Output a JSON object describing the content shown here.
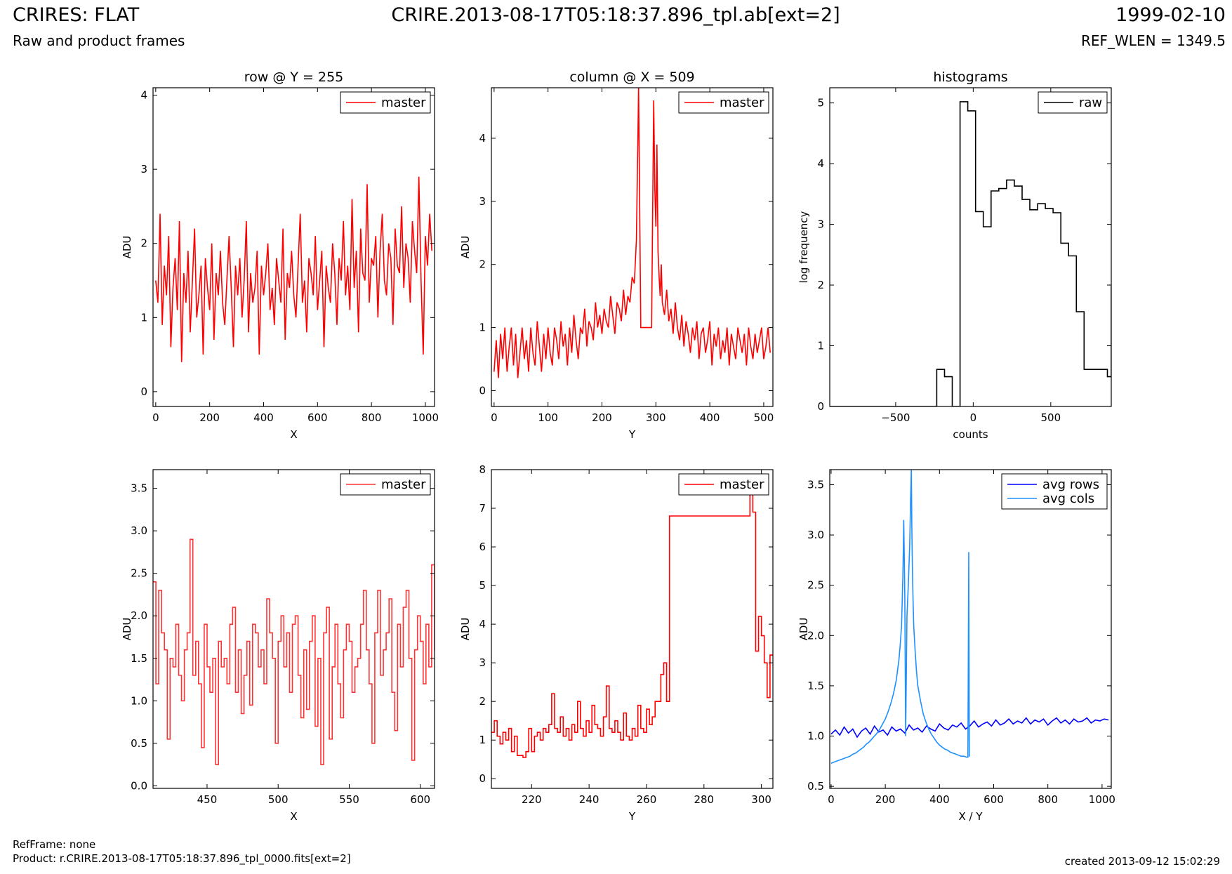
{
  "header": {
    "title": "CRIRES: FLAT",
    "subtitle": "Raw and product frames",
    "file": "CRIRE.2013-08-17T05:18:37.896_tpl.ab[ext=2]",
    "date": "1999-02-10",
    "ref_wlen": "REF_WLEN = 1349.5"
  },
  "footer": {
    "ref_frame": "RefFrame: none",
    "product": "Product: r.CRIRE.2013-08-17T05:18:37.896_tpl_0000.fits[ext=2]",
    "created": "created 2013-09-12 15:02:29"
  },
  "colors": {
    "master": "#ff0000",
    "master_zoom": "#ff3333",
    "raw": "#000000",
    "avg_rows": "#0000ff",
    "avg_cols": "#1e90ff"
  },
  "chart_data": [
    {
      "id": "row",
      "type": "line",
      "title": "row @ Y = 255",
      "xlabel": "X",
      "ylabel": "ADU",
      "xlim": [
        -10,
        1034
      ],
      "ylim": [
        -0.2,
        4.1
      ],
      "xticks": [
        0,
        200,
        400,
        600,
        800,
        1000
      ],
      "yticks": [
        0,
        1,
        2,
        3,
        4
      ],
      "legend": "top-right",
      "series": [
        {
          "name": "master",
          "color": "#ff0000",
          "step": false,
          "x_start": 0,
          "x_step": 8,
          "values": [
            1.5,
            1.2,
            2.4,
            0.9,
            1.7,
            1.3,
            2.1,
            0.6,
            1.4,
            1.8,
            1.1,
            2.3,
            0.4,
            1.6,
            1.2,
            1.9,
            0.8,
            1.5,
            2.2,
            1.0,
            1.3,
            1.7,
            0.5,
            1.8,
            1.4,
            1.1,
            2.0,
            0.7,
            1.6,
            1.3,
            1.9,
            1.2,
            0.9,
            1.5,
            2.1,
            1.4,
            0.6,
            1.7,
            1.3,
            1.8,
            1.0,
            1.5,
            2.3,
            0.8,
            1.6,
            1.2,
            1.4,
            1.9,
            0.5,
            1.7,
            1.3,
            1.6,
            2.0,
            1.1,
            1.4,
            0.9,
            1.8,
            1.5,
            1.2,
            2.2,
            0.7,
            1.6,
            1.4,
            1.9,
            1.3,
            1.0,
            1.7,
            2.4,
            1.2,
            1.5,
            0.8,
            1.8,
            1.6,
            1.3,
            2.1,
            1.1,
            1.5,
            1.9,
            0.6,
            1.7,
            1.4,
            1.2,
            2.0,
            1.6,
            0.9,
            1.8,
            1.5,
            2.3,
            1.3,
            1.7,
            1.1,
            2.6,
            1.4,
            1.9,
            0.8,
            2.2,
            1.6,
            1.5,
            2.8,
            1.2,
            1.8,
            1.7,
            2.1,
            1.0,
            1.9,
            2.4,
            1.5,
            1.3,
            2.0,
            1.8,
            0.9,
            2.2,
            1.7,
            1.6,
            2.5,
            1.4,
            2.0,
            1.8,
            1.2,
            2.3,
            1.9,
            1.6,
            2.9,
            1.5,
            0.5,
            2.1,
            1.7,
            2.4,
            1.9
          ]
        }
      ]
    },
    {
      "id": "col",
      "type": "line",
      "title": "column @ X = 509",
      "xlabel": "Y",
      "ylabel": "ADU",
      "xlim": [
        -5,
        517
      ],
      "ylim": [
        -0.25,
        4.8
      ],
      "xticks": [
        0,
        100,
        200,
        300,
        400,
        500
      ],
      "yticks": [
        0,
        1,
        2,
        3,
        4
      ],
      "legend": "top-right",
      "series": [
        {
          "name": "master",
          "color": "#ff0000",
          "x": [
            0,
            4,
            8,
            12,
            16,
            20,
            24,
            28,
            32,
            36,
            40,
            44,
            48,
            52,
            56,
            60,
            64,
            68,
            72,
            76,
            80,
            84,
            88,
            92,
            96,
            100,
            104,
            108,
            112,
            116,
            120,
            124,
            128,
            132,
            136,
            140,
            144,
            148,
            152,
            156,
            160,
            164,
            168,
            172,
            176,
            180,
            184,
            188,
            192,
            196,
            200,
            204,
            208,
            212,
            216,
            220,
            224,
            228,
            232,
            236,
            240,
            244,
            248,
            252,
            256,
            260,
            264,
            268,
            272,
            276,
            280,
            284,
            288,
            292,
            296,
            298,
            300,
            302,
            304,
            306,
            308,
            310,
            312,
            316,
            320,
            324,
            328,
            332,
            336,
            340,
            344,
            348,
            352,
            356,
            360,
            364,
            368,
            372,
            376,
            380,
            384,
            388,
            392,
            396,
            400,
            404,
            408,
            412,
            416,
            420,
            424,
            428,
            432,
            436,
            440,
            444,
            448,
            452,
            456,
            460,
            464,
            468,
            472,
            476,
            480,
            484,
            488,
            492,
            496,
            500,
            504,
            508,
            512
          ],
          "y": [
            0.3,
            0.8,
            0.2,
            0.9,
            0.5,
            1.0,
            0.3,
            0.7,
            1.0,
            0.4,
            0.9,
            0.2,
            0.6,
            1.0,
            0.5,
            0.8,
            0.3,
            1.0,
            0.6,
            0.4,
            1.1,
            0.7,
            0.3,
            0.9,
            0.5,
            1.0,
            0.6,
            0.4,
            1.0,
            0.8,
            0.5,
            1.1,
            0.7,
            0.9,
            0.4,
            1.0,
            0.6,
            1.2,
            0.8,
            0.5,
            1.0,
            0.9,
            1.3,
            0.7,
            1.1,
            1.0,
            0.8,
            1.4,
            1.0,
            1.2,
            0.9,
            1.3,
            1.1,
            1.0,
            1.5,
            1.2,
            0.9,
            1.4,
            1.3,
            1.1,
            1.6,
            1.2,
            1.5,
            1.4,
            1.8,
            1.7,
            2.4,
            4.8,
            1.0,
            1.0,
            1.0,
            1.0,
            1.0,
            1.0,
            4.6,
            3.2,
            2.6,
            3.9,
            2.2,
            1.8,
            1.5,
            2.0,
            1.4,
            1.2,
            1.6,
            1.1,
            1.3,
            0.9,
            1.4,
            1.0,
            0.8,
            1.2,
            0.7,
            1.1,
            0.9,
            0.6,
            1.0,
            0.8,
            1.1,
            0.5,
            0.9,
            1.0,
            0.6,
            0.8,
            1.1,
            0.4,
            0.9,
            0.7,
            1.0,
            0.5,
            0.8,
            0.6,
            1.0,
            0.4,
            0.9,
            0.7,
            0.5,
            1.0,
            0.8,
            0.6,
            0.9,
            0.4,
            1.0,
            0.7,
            0.5,
            0.9,
            0.6,
            0.8,
            1.0,
            0.5,
            0.7,
            1.0,
            0.6
          ]
        }
      ]
    },
    {
      "id": "hist",
      "type": "line",
      "title": "histograms",
      "xlabel": "counts",
      "ylabel": "log frequency",
      "xlim": [
        -925,
        890
      ],
      "ylim": [
        0,
        5.25
      ],
      "xticks": [
        -500,
        0,
        500
      ],
      "yticks": [
        0,
        1,
        2,
        3,
        4,
        5
      ],
      "legend": "top-right",
      "series": [
        {
          "name": "raw",
          "color": "#000000",
          "step": true,
          "x": [
            -925,
            -235,
            -185,
            -135,
            -85,
            -35,
            15,
            65,
            115,
            165,
            215,
            265,
            315,
            365,
            415,
            465,
            515,
            565,
            615,
            665,
            715,
            765,
            815,
            865,
            890
          ],
          "y": [
            0,
            0.61,
            0.49,
            0,
            5.02,
            4.87,
            3.21,
            2.96,
            3.55,
            3.59,
            3.73,
            3.63,
            3.41,
            3.24,
            3.34,
            3.26,
            3.19,
            2.69,
            2.48,
            1.56,
            0.61,
            0.61,
            0.61,
            0.49,
            1.97
          ]
        }
      ]
    },
    {
      "id": "row_zoom",
      "type": "line",
      "title": "",
      "xlabel": "X",
      "ylabel": "ADU",
      "xlim": [
        412,
        610
      ],
      "ylim": [
        -0.03,
        3.72
      ],
      "xticks": [
        450,
        500,
        550,
        600
      ],
      "yticks": [
        0.0,
        0.5,
        1.0,
        1.5,
        2.0,
        2.5,
        3.0,
        3.5
      ],
      "legend": "top-right",
      "series": [
        {
          "name": "master",
          "color": "#ff3333",
          "step": true,
          "x_start": 412,
          "x_step": 2,
          "values": [
            2.4,
            1.2,
            2.3,
            1.8,
            1.6,
            0.55,
            1.5,
            1.4,
            1.9,
            1.3,
            1.0,
            1.6,
            1.8,
            2.9,
            1.3,
            1.7,
            1.2,
            0.45,
            1.9,
            1.4,
            1.1,
            1.5,
            0.25,
            1.7,
            1.4,
            1.5,
            1.2,
            1.9,
            2.1,
            1.1,
            1.6,
            0.85,
            1.3,
            1.7,
            0.95,
            1.9,
            1.8,
            1.4,
            1.6,
            1.2,
            2.2,
            1.8,
            1.5,
            0.5,
            1.7,
            2.0,
            1.4,
            1.8,
            1.1,
            1.9,
            2.0,
            1.3,
            0.8,
            1.6,
            0.9,
            1.7,
            2.0,
            0.7,
            1.5,
            0.25,
            1.8,
            2.1,
            0.55,
            1.4,
            1.9,
            1.2,
            0.8,
            1.6,
            1.9,
            1.7,
            1.1,
            1.4,
            1.5,
            1.9,
            2.3,
            1.6,
            1.2,
            0.5,
            1.8,
            2.3,
            1.3,
            1.6,
            1.8,
            2.2,
            1.1,
            0.65,
            1.9,
            1.4,
            2.1,
            2.3,
            1.5,
            0.3,
            1.6,
            2.0,
            1.7,
            1.2,
            1.9,
            1.4,
            2.6,
            1.6
          ]
        }
      ]
    },
    {
      "id": "col_zoom",
      "type": "line",
      "title": "",
      "xlabel": "Y",
      "ylabel": "ADU",
      "xlim": [
        206,
        304
      ],
      "ylim": [
        -0.25,
        8.0
      ],
      "xticks": [
        220,
        240,
        260,
        280,
        300
      ],
      "yticks": [
        0,
        1,
        2,
        3,
        4,
        5,
        6,
        7,
        8
      ],
      "legend": "top-right",
      "series": [
        {
          "name": "master",
          "color": "#ff0000",
          "step": true,
          "x": [
            206,
            207,
            208,
            209,
            210,
            211,
            212,
            213,
            214,
            215,
            216,
            217,
            218,
            219,
            220,
            221,
            222,
            223,
            224,
            225,
            226,
            227,
            228,
            229,
            230,
            231,
            232,
            233,
            234,
            235,
            236,
            237,
            238,
            239,
            240,
            241,
            242,
            243,
            244,
            245,
            246,
            247,
            248,
            249,
            250,
            251,
            252,
            253,
            254,
            255,
            256,
            257,
            258,
            259,
            260,
            261,
            262,
            263,
            264,
            265,
            266,
            267,
            268,
            296,
            297,
            298,
            299,
            300,
            301,
            302,
            303,
            304
          ],
          "y": [
            1.2,
            1.5,
            1.1,
            0.9,
            1.2,
            1.0,
            1.3,
            0.7,
            1.1,
            0.6,
            0.6,
            0.55,
            0.7,
            1.3,
            0.7,
            1.1,
            1.2,
            1.0,
            1.3,
            1.2,
            1.4,
            2.2,
            1.3,
            1.2,
            1.6,
            1.1,
            1.3,
            1.0,
            1.4,
            1.2,
            2.0,
            1.3,
            1.1,
            1.5,
            1.2,
            1.9,
            1.4,
            1.3,
            1.1,
            1.6,
            2.4,
            1.3,
            1.2,
            1.5,
            1.2,
            1.0,
            1.7,
            1.1,
            1.0,
            1.3,
            1.1,
            1.9,
            1.3,
            1.2,
            1.8,
            1.4,
            1.6,
            2.0,
            2.0,
            2.7,
            3.0,
            2.0,
            6.8,
            7.5,
            6.9,
            3.3,
            4.2,
            3.7,
            3.0,
            2.1,
            3.2,
            3.2
          ]
        }
      ]
    },
    {
      "id": "avg",
      "type": "line",
      "title": "",
      "xlabel": "X / Y",
      "ylabel": "ADU",
      "xlim": [
        -5,
        1034
      ],
      "ylim": [
        0.48,
        3.65
      ],
      "xticks": [
        0,
        200,
        400,
        600,
        800,
        1000
      ],
      "yticks": [
        0.5,
        1.0,
        1.5,
        2.0,
        2.5,
        3.0,
        3.5
      ],
      "legend": "top-right",
      "series": [
        {
          "name": "avg rows",
          "color": "#0000ff",
          "step": false,
          "x_start": 0,
          "x_step": 16,
          "values": [
            1.02,
            1.06,
            1.01,
            1.09,
            1.03,
            1.07,
            0.99,
            1.05,
            1.08,
            1.02,
            1.1,
            1.04,
            1.06,
            1.01,
            1.09,
            1.05,
            1.07,
            1.03,
            1.11,
            1.06,
            1.08,
            1.04,
            1.1,
            1.07,
            1.05,
            1.12,
            1.08,
            1.06,
            1.11,
            1.09,
            1.13,
            1.07,
            1.1,
            1.15,
            1.09,
            1.12,
            1.14,
            1.1,
            1.16,
            1.11,
            1.13,
            1.17,
            1.12,
            1.15,
            1.13,
            1.18,
            1.12,
            1.16,
            1.14,
            1.17,
            1.11,
            1.15,
            1.18,
            1.13,
            1.16,
            1.12,
            1.17,
            1.14,
            1.15,
            1.18,
            1.13,
            1.16,
            1.15,
            1.17,
            1.16
          ]
        },
        {
          "name": "avg cols",
          "color": "#1e90ff",
          "step": false,
          "x": [
            0,
            10,
            20,
            30,
            40,
            50,
            60,
            70,
            80,
            90,
            100,
            110,
            120,
            130,
            140,
            150,
            160,
            170,
            180,
            190,
            200,
            210,
            220,
            230,
            240,
            250,
            255,
            260,
            265,
            268,
            272,
            275,
            280,
            285,
            290,
            293,
            296,
            298,
            300,
            302,
            305,
            310,
            315,
            320,
            330,
            340,
            350,
            360,
            370,
            380,
            390,
            400,
            410,
            420,
            430,
            440,
            450,
            460,
            470,
            480,
            490,
            500,
            505,
            508,
            510,
            512
          ],
          "y": [
            0.73,
            0.74,
            0.75,
            0.76,
            0.77,
            0.78,
            0.79,
            0.8,
            0.82,
            0.83,
            0.85,
            0.87,
            0.89,
            0.92,
            0.94,
            0.97,
            1.0,
            1.03,
            1.07,
            1.12,
            1.17,
            1.24,
            1.32,
            1.42,
            1.55,
            1.75,
            1.9,
            2.1,
            2.6,
            3.15,
            2.4,
            1.0,
            2.2,
            2.5,
            2.9,
            3.3,
            3.65,
            3.1,
            2.7,
            2.4,
            2.1,
            1.85,
            1.65,
            1.5,
            1.35,
            1.22,
            1.14,
            1.07,
            1.02,
            0.98,
            0.94,
            0.91,
            0.89,
            0.87,
            0.86,
            0.84,
            0.83,
            0.82,
            0.81,
            0.8,
            0.8,
            0.79,
            0.79,
            2.83,
            0.8,
            0.8
          ]
        }
      ]
    }
  ]
}
